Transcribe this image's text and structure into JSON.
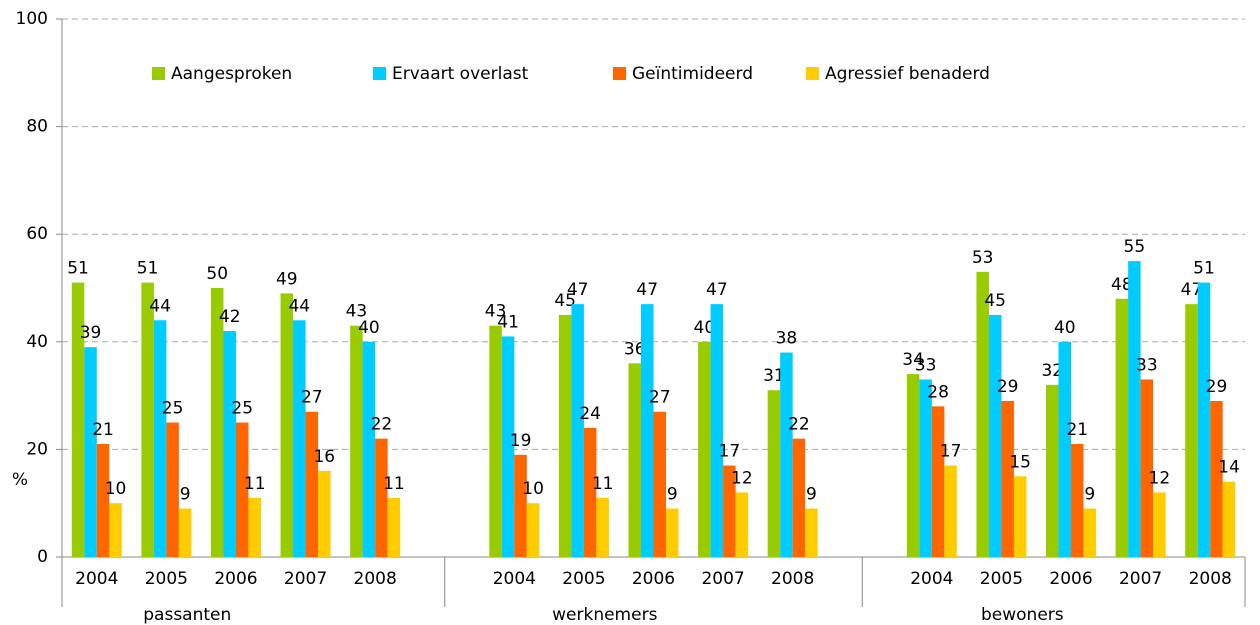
{
  "chart_data": {
    "type": "grouped_bar",
    "y_label": "%",
    "groups": [
      {
        "name": "passanten",
        "categories": [
          "2004",
          "2005",
          "2006",
          "2007",
          "2008"
        ]
      },
      {
        "name": "werknemers",
        "categories": [
          "2004",
          "2005",
          "2006",
          "2007",
          "2008"
        ]
      },
      {
        "name": "bewoners",
        "categories": [
          "2004",
          "2005",
          "2006",
          "2007",
          "2008"
        ]
      }
    ],
    "series": [
      {
        "name": "Aangesproken",
        "color": "#99cc00",
        "values": [
          51,
          51,
          50,
          49,
          43,
          43,
          45,
          36,
          40,
          31,
          34,
          53,
          32,
          48,
          47
        ]
      },
      {
        "name": "Ervaart overlast",
        "color": "#00ccff",
        "values": [
          39,
          44,
          42,
          44,
          40,
          41,
          47,
          47,
          47,
          38,
          33,
          45,
          40,
          55,
          51
        ]
      },
      {
        "name": "Geïntimideerd",
        "color": "#ff6600",
        "values": [
          21,
          25,
          25,
          27,
          22,
          19,
          24,
          27,
          17,
          22,
          28,
          29,
          21,
          33,
          29
        ]
      },
      {
        "name": "Agressief benaderd",
        "color": "#ffcc00",
        "values": [
          10,
          9,
          11,
          16,
          11,
          10,
          11,
          9,
          12,
          9,
          17,
          15,
          9,
          12,
          14
        ]
      }
    ],
    "ylim": [
      0,
      100
    ],
    "yticks": [
      0,
      20,
      40,
      60,
      80,
      100
    ],
    "grid": true
  }
}
